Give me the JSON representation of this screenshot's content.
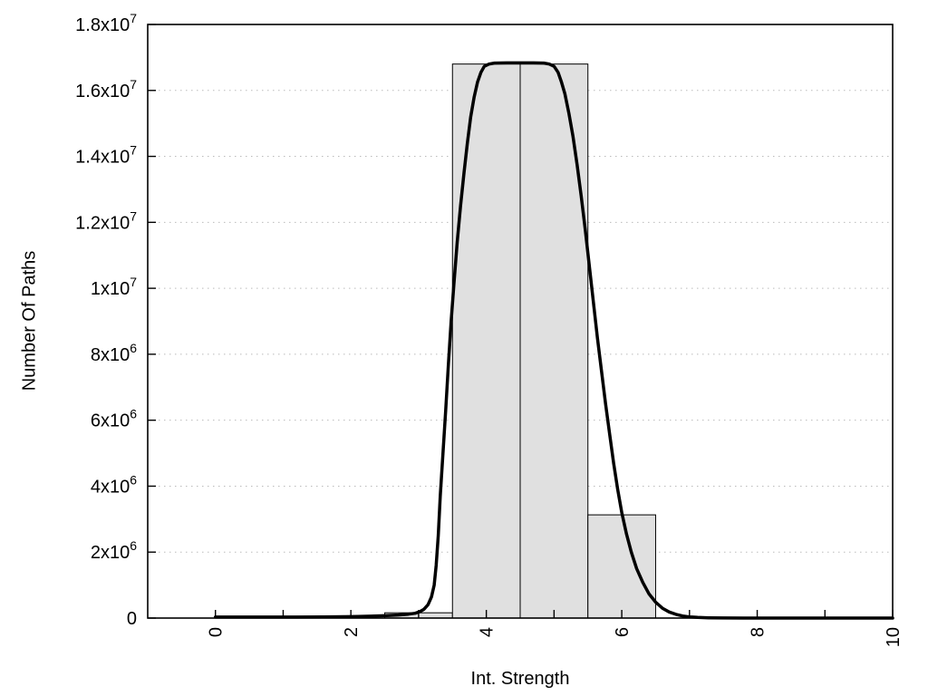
{
  "chart_data": {
    "type": "bar",
    "subtype": "histogram-with-density-curve",
    "title": "",
    "xlabel": "Int. Strength",
    "ylabel": "Number Of Paths",
    "xlim": [
      -1,
      10
    ],
    "ylim": [
      0,
      18000000
    ],
    "grid": "horizontal-dotted",
    "legend": "none",
    "x_major_ticks": [
      0,
      2,
      4,
      6,
      8,
      10
    ],
    "x_major_labels": [
      "0",
      "2",
      "4",
      "6",
      "8",
      "10"
    ],
    "x_minor_ticks": [
      1,
      3,
      5,
      7,
      9
    ],
    "y_ticks": [
      0,
      2000000,
      4000000,
      6000000,
      8000000,
      10000000,
      12000000,
      14000000,
      16000000,
      18000000
    ],
    "y_tick_labels": [
      "0",
      "2x10^6",
      "4x10^6",
      "6x10^6",
      "8x10^6",
      "1x10^7",
      "1.2x10^7",
      "1.4x10^7",
      "1.6x10^7",
      "1.8x10^7"
    ],
    "bars": [
      {
        "x0": 2.5,
        "x1": 3.5,
        "value": 160000
      },
      {
        "x0": 3.5,
        "x1": 4.5,
        "value": 16800000
      },
      {
        "x0": 4.5,
        "x1": 5.5,
        "value": 16800000
      },
      {
        "x0": 5.5,
        "x1": 6.5,
        "value": 3130000
      }
    ],
    "curve": [
      [
        0.0,
        30000
      ],
      [
        0.4,
        30000
      ],
      [
        0.8,
        30000
      ],
      [
        1.2,
        31000
      ],
      [
        1.6,
        34000
      ],
      [
        1.9,
        40000
      ],
      [
        2.1,
        47000
      ],
      [
        2.3,
        57000
      ],
      [
        2.5,
        72000
      ],
      [
        2.7,
        93000
      ],
      [
        2.85,
        118000
      ],
      [
        2.95,
        145000
      ],
      [
        3.02,
        195000
      ],
      [
        3.08,
        270000
      ],
      [
        3.14,
        410000
      ],
      [
        3.19,
        640000
      ],
      [
        3.23,
        1000000
      ],
      [
        3.26,
        1600000
      ],
      [
        3.29,
        2500000
      ],
      [
        3.32,
        3700000
      ],
      [
        3.36,
        5000000
      ],
      [
        3.4,
        6300000
      ],
      [
        3.44,
        7700000
      ],
      [
        3.48,
        9000000
      ],
      [
        3.52,
        10100000
      ],
      [
        3.57,
        11400000
      ],
      [
        3.62,
        12500000
      ],
      [
        3.67,
        13500000
      ],
      [
        3.72,
        14400000
      ],
      [
        3.77,
        15200000
      ],
      [
        3.82,
        15800000
      ],
      [
        3.87,
        16250000
      ],
      [
        3.92,
        16550000
      ],
      [
        3.97,
        16730000
      ],
      [
        4.04,
        16800000
      ],
      [
        4.12,
        16830000
      ],
      [
        4.3,
        16835000
      ],
      [
        4.5,
        16835000
      ],
      [
        4.7,
        16835000
      ],
      [
        4.85,
        16830000
      ],
      [
        4.93,
        16800000
      ],
      [
        5.0,
        16730000
      ],
      [
        5.06,
        16550000
      ],
      [
        5.11,
        16250000
      ],
      [
        5.16,
        15900000
      ],
      [
        5.22,
        15300000
      ],
      [
        5.28,
        14600000
      ],
      [
        5.34,
        13750000
      ],
      [
        5.4,
        12800000
      ],
      [
        5.46,
        11800000
      ],
      [
        5.52,
        10700000
      ],
      [
        5.58,
        9600000
      ],
      [
        5.64,
        8500000
      ],
      [
        5.7,
        7500000
      ],
      [
        5.76,
        6500000
      ],
      [
        5.82,
        5600000
      ],
      [
        5.88,
        4700000
      ],
      [
        5.94,
        3900000
      ],
      [
        6.0,
        3200000
      ],
      [
        6.07,
        2550000
      ],
      [
        6.14,
        2000000
      ],
      [
        6.22,
        1500000
      ],
      [
        6.31,
        1080000
      ],
      [
        6.4,
        740000
      ],
      [
        6.5,
        480000
      ],
      [
        6.6,
        300000
      ],
      [
        6.7,
        185000
      ],
      [
        6.8,
        112000
      ],
      [
        6.9,
        64000
      ],
      [
        7.0,
        35000
      ],
      [
        7.12,
        18000
      ],
      [
        7.28,
        8000
      ],
      [
        7.5,
        3000
      ],
      [
        7.8,
        1000
      ],
      [
        8.2,
        0
      ],
      [
        8.8,
        0
      ],
      [
        9.4,
        0
      ],
      [
        10.0,
        0
      ]
    ],
    "colors": {
      "bar_fill": "#e0e0e0",
      "bar_stroke": "#000000",
      "curve": "#000000",
      "frame": "#000000",
      "grid": "#bbbbbb",
      "text": "#000000"
    }
  }
}
